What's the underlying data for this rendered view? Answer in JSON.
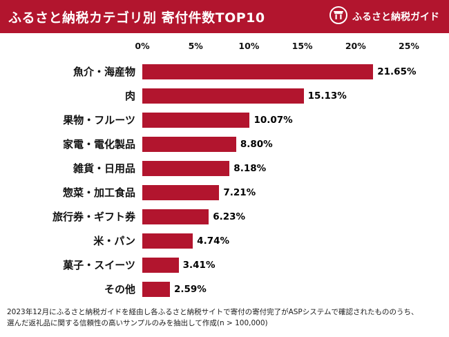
{
  "header": {
    "title": "ふるさと納税カテゴリ別 寄付件数TOP10",
    "logo_text": "ふるさと納税ガイド",
    "bg_color": "#b2152e"
  },
  "chart_data": {
    "type": "bar",
    "orientation": "horizontal",
    "title": "ふるさと納税カテゴリ別 寄付件数TOP10",
    "categories": [
      "魚介・海産物",
      "肉",
      "果物・フルーツ",
      "家電・電化製品",
      "雑貨・日用品",
      "惣菜・加工食品",
      "旅行券・ギフト券",
      "米・パン",
      "菓子・スイーツ",
      "その他"
    ],
    "values": [
      21.65,
      15.13,
      10.07,
      8.8,
      8.18,
      7.21,
      6.23,
      4.74,
      3.41,
      2.59
    ],
    "value_labels": [
      "21.65%",
      "15.13%",
      "10.07%",
      "8.80%",
      "8.18%",
      "7.21%",
      "6.23%",
      "4.74%",
      "3.41%",
      "2.59%"
    ],
    "xlim": [
      0,
      25
    ],
    "x_tick_step": 5,
    "x_ticks": [
      "0%",
      "5%",
      "10%",
      "15%",
      "20%",
      "25%"
    ],
    "bar_color": "#b2152e",
    "grid": false,
    "legend": false
  },
  "footer": {
    "note_line1": "2023年12月にふるさと納税ガイドを経由し各ふるさと納税サイトで寄付の寄付完了がASPシステムで確認されたもののうち、",
    "note_line2": "選んだ返礼品に関する信頼性の高いサンプルのみを抽出して作成(n > 100,000)"
  }
}
